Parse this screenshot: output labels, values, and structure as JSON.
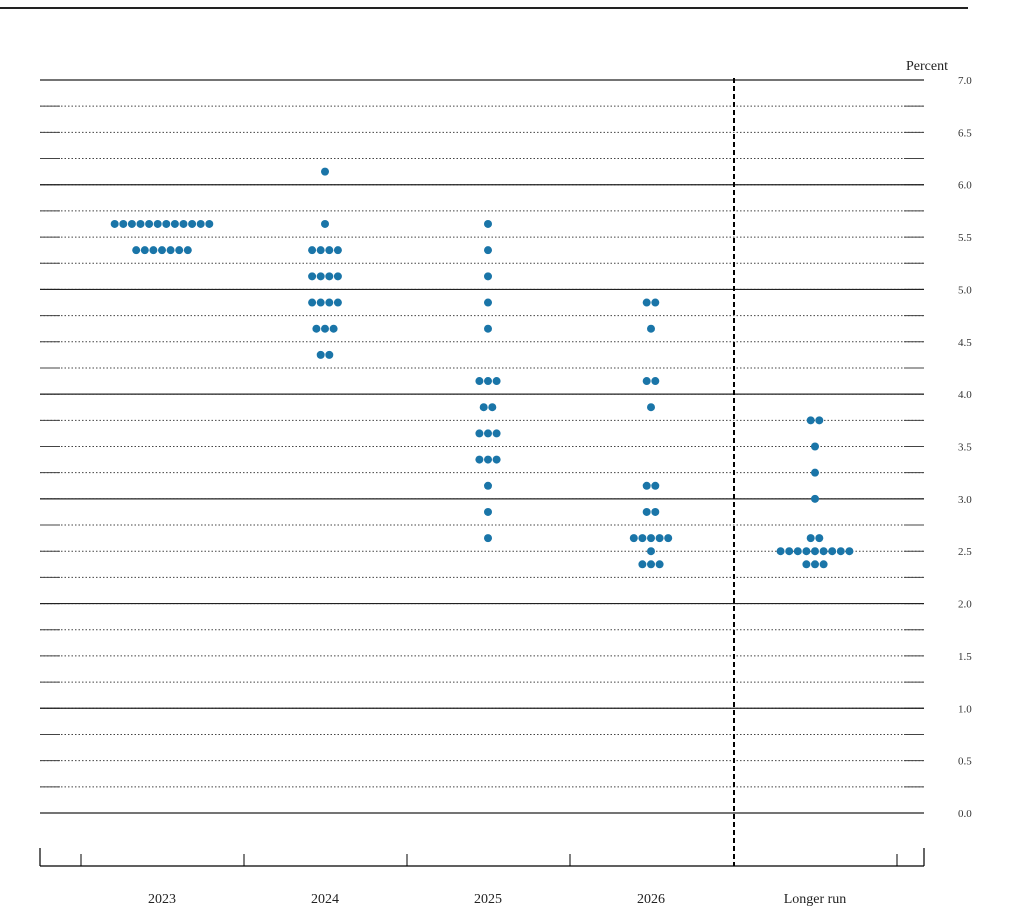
{
  "chart_data": {
    "type": "scatter",
    "title": "",
    "ylabel": "Percent",
    "xlabel": "",
    "ylim": [
      0,
      7
    ],
    "yticks": [
      "0.0",
      "0.5",
      "1.0",
      "1.5",
      "2.0",
      "2.5",
      "3.0",
      "3.5",
      "4.0",
      "4.5",
      "5.0",
      "5.5",
      "6.0",
      "6.5",
      "7.0"
    ],
    "categories": [
      "2023",
      "2024",
      "2025",
      "2026",
      "Longer run"
    ],
    "grid": true,
    "dot_color": "#1a75a8",
    "columns": [
      {
        "category": "2023",
        "points": [
          {
            "y": 5.625,
            "count": 12
          },
          {
            "y": 5.375,
            "count": 7
          }
        ]
      },
      {
        "category": "2024",
        "points": [
          {
            "y": 6.125,
            "count": 1
          },
          {
            "y": 5.625,
            "count": 1
          },
          {
            "y": 5.375,
            "count": 4
          },
          {
            "y": 5.125,
            "count": 4
          },
          {
            "y": 4.875,
            "count": 4
          },
          {
            "y": 4.625,
            "count": 3
          },
          {
            "y": 4.375,
            "count": 2
          }
        ]
      },
      {
        "category": "2025",
        "points": [
          {
            "y": 5.625,
            "count": 1
          },
          {
            "y": 5.375,
            "count": 1
          },
          {
            "y": 5.125,
            "count": 1
          },
          {
            "y": 4.875,
            "count": 1
          },
          {
            "y": 4.625,
            "count": 1
          },
          {
            "y": 4.125,
            "count": 3
          },
          {
            "y": 3.875,
            "count": 2
          },
          {
            "y": 3.625,
            "count": 3
          },
          {
            "y": 3.375,
            "count": 3
          },
          {
            "y": 3.125,
            "count": 1
          },
          {
            "y": 2.875,
            "count": 1
          },
          {
            "y": 2.625,
            "count": 1
          }
        ]
      },
      {
        "category": "2026",
        "points": [
          {
            "y": 4.875,
            "count": 2
          },
          {
            "y": 4.625,
            "count": 1
          },
          {
            "y": 4.125,
            "count": 2
          },
          {
            "y": 3.875,
            "count": 1
          },
          {
            "y": 3.125,
            "count": 2
          },
          {
            "y": 2.875,
            "count": 2
          },
          {
            "y": 2.625,
            "count": 5
          },
          {
            "y": 2.5,
            "count": 1
          },
          {
            "y": 2.375,
            "count": 3
          }
        ]
      },
      {
        "category": "Longer run",
        "points": [
          {
            "y": 3.75,
            "count": 2
          },
          {
            "y": 3.5,
            "count": 1
          },
          {
            "y": 3.25,
            "count": 1
          },
          {
            "y": 3.0,
            "count": 1
          },
          {
            "y": 2.625,
            "count": 2
          },
          {
            "y": 2.5,
            "count": 9
          },
          {
            "y": 2.375,
            "count": 3
          }
        ]
      }
    ]
  }
}
